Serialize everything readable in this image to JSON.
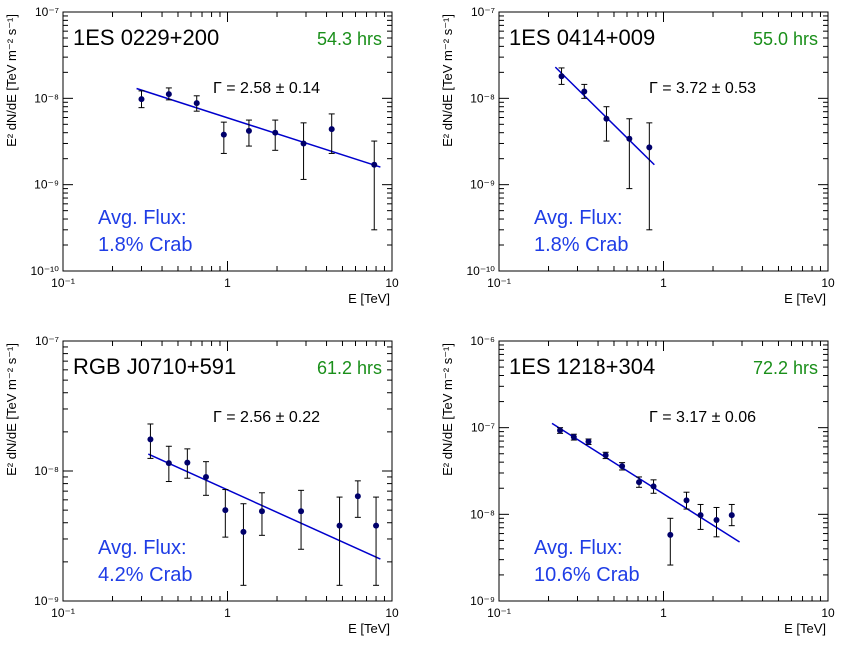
{
  "chart_data": [
    {
      "type": "scatter",
      "title": "1ES 0229+200",
      "exposure": "54.3 hrs",
      "index_label": "Γ = 2.58 ± 0.14",
      "flux_label_1": "Avg. Flux:",
      "flux_label_2": "1.8% Crab",
      "xlabel": "E [TeV]",
      "ylabel": "E² dN/dE [TeV m⁻² s⁻¹]",
      "x_scale": "log",
      "y_scale": "log",
      "xlim": [
        0.1,
        10
      ],
      "ylim": [
        1e-10,
        1e-07
      ],
      "x_ticks": [
        0.1,
        1,
        10
      ],
      "x_tick_labels": [
        "10⁻¹",
        "1",
        "10"
      ],
      "y_ticks": [
        1e-10,
        1e-09,
        1e-08,
        1e-07
      ],
      "y_tick_labels": [
        "10⁻¹⁰",
        "10⁻⁹",
        "10⁻⁸",
        "10⁻⁷"
      ],
      "points": [
        {
          "x": 0.3,
          "y": 9.8e-09,
          "ylo": 7.8e-09,
          "yhi": 1.22e-08
        },
        {
          "x": 0.44,
          "y": 1.12e-08,
          "ylo": 9.6e-09,
          "yhi": 1.32e-08
        },
        {
          "x": 0.65,
          "y": 8.8e-09,
          "ylo": 7.1e-09,
          "yhi": 1.07e-08
        },
        {
          "x": 0.95,
          "y": 3.8e-09,
          "ylo": 2.3e-09,
          "yhi": 5.3e-09
        },
        {
          "x": 1.35,
          "y": 4.2e-09,
          "ylo": 2.8e-09,
          "yhi": 5.6e-09
        },
        {
          "x": 1.95,
          "y": 4e-09,
          "ylo": 2.5e-09,
          "yhi": 5.6e-09
        },
        {
          "x": 2.9,
          "y": 3e-09,
          "ylo": 1.15e-09,
          "yhi": 5.2e-09
        },
        {
          "x": 4.3,
          "y": 4.4e-09,
          "ylo": 2.3e-09,
          "yhi": 6.6e-09
        },
        {
          "x": 7.8,
          "y": 1.7e-09,
          "ylo": 3e-10,
          "yhi": 3.2e-09
        }
      ],
      "fit_line": {
        "x": [
          0.28,
          8.5
        ],
        "y": [
          1.3e-08,
          1.6e-09
        ]
      }
    },
    {
      "type": "scatter",
      "title": "1ES 0414+009",
      "exposure": "55.0 hrs",
      "index_label": "Γ = 3.72 ± 0.53",
      "flux_label_1": "Avg. Flux:",
      "flux_label_2": "1.8% Crab",
      "xlabel": "E [TeV]",
      "ylabel": "E² dN/dE [TeV m⁻² s⁻¹]",
      "x_scale": "log",
      "y_scale": "log",
      "xlim": [
        0.1,
        10
      ],
      "ylim": [
        1e-10,
        1e-07
      ],
      "x_ticks": [
        0.1,
        1,
        10
      ],
      "x_tick_labels": [
        "10⁻¹",
        "1",
        "10"
      ],
      "y_ticks": [
        1e-10,
        1e-09,
        1e-08,
        1e-07
      ],
      "y_tick_labels": [
        "10⁻¹⁰",
        "10⁻⁹",
        "10⁻⁸",
        "10⁻⁷"
      ],
      "points": [
        {
          "x": 0.24,
          "y": 1.8e-08,
          "ylo": 1.45e-08,
          "yhi": 2.25e-08
        },
        {
          "x": 0.33,
          "y": 1.2e-08,
          "ylo": 1e-08,
          "yhi": 1.45e-08
        },
        {
          "x": 0.45,
          "y": 5.8e-09,
          "ylo": 3.2e-09,
          "yhi": 8e-09
        },
        {
          "x": 0.62,
          "y": 3.4e-09,
          "ylo": 9e-10,
          "yhi": 5.8e-09
        },
        {
          "x": 0.82,
          "y": 2.7e-09,
          "ylo": 3e-10,
          "yhi": 5.2e-09
        }
      ],
      "fit_line": {
        "x": [
          0.22,
          0.88
        ],
        "y": [
          2.3e-08,
          1.7e-09
        ]
      }
    },
    {
      "type": "scatter",
      "title": "RGB J0710+591",
      "exposure": "61.2 hrs",
      "index_label": "Γ = 2.56 ± 0.22",
      "flux_label_1": "Avg. Flux:",
      "flux_label_2": "4.2% Crab",
      "xlabel": "E [TeV]",
      "ylabel": "E² dN/dE [TeV m⁻² s⁻¹]",
      "x_scale": "log",
      "y_scale": "log",
      "xlim": [
        0.1,
        10
      ],
      "ylim": [
        1e-09,
        1e-07
      ],
      "x_ticks": [
        0.1,
        1,
        10
      ],
      "x_tick_labels": [
        "10⁻¹",
        "1",
        "10"
      ],
      "y_ticks": [
        1e-09,
        1e-08,
        1e-07
      ],
      "y_tick_labels": [
        "10⁻⁹",
        "10⁻⁸",
        "10⁻⁷"
      ],
      "points": [
        {
          "x": 0.34,
          "y": 1.75e-08,
          "ylo": 1.25e-08,
          "yhi": 2.3e-08
        },
        {
          "x": 0.44,
          "y": 1.15e-08,
          "ylo": 8.3e-09,
          "yhi": 1.55e-08
        },
        {
          "x": 0.57,
          "y": 1.16e-08,
          "ylo": 8.8e-09,
          "yhi": 1.48e-08
        },
        {
          "x": 0.74,
          "y": 9e-09,
          "ylo": 6.5e-09,
          "yhi": 1.18e-08
        },
        {
          "x": 0.97,
          "y": 5e-09,
          "ylo": 3.1e-09,
          "yhi": 7.2e-09
        },
        {
          "x": 1.25,
          "y": 3.4e-09,
          "ylo": 1.32e-09,
          "yhi": 5.6e-09
        },
        {
          "x": 1.62,
          "y": 4.9e-09,
          "ylo": 3.2e-09,
          "yhi": 6.8e-09
        },
        {
          "x": 2.8,
          "y": 4.9e-09,
          "ylo": 2.5e-09,
          "yhi": 7.1e-09
        },
        {
          "x": 4.8,
          "y": 3.8e-09,
          "ylo": 1.32e-09,
          "yhi": 6.3e-09
        },
        {
          "x": 6.2,
          "y": 6.4e-09,
          "ylo": 4.4e-09,
          "yhi": 8.4e-09
        },
        {
          "x": 8.0,
          "y": 3.8e-09,
          "ylo": 1.32e-09,
          "yhi": 6.3e-09
        }
      ],
      "fit_line": {
        "x": [
          0.33,
          8.5
        ],
        "y": [
          1.35e-08,
          2.1e-09
        ]
      }
    },
    {
      "type": "scatter",
      "title": "1ES 1218+304",
      "exposure": "72.2 hrs",
      "index_label": "Γ = 3.17 ± 0.06",
      "flux_label_1": "Avg. Flux:",
      "flux_label_2": "10.6% Crab",
      "xlabel": "E [TeV]",
      "ylabel": "E² dN/dE [TeV m⁻² s⁻¹]",
      "x_scale": "log",
      "y_scale": "log",
      "xlim": [
        0.1,
        10
      ],
      "ylim": [
        1e-09,
        1e-06
      ],
      "x_ticks": [
        0.1,
        1,
        10
      ],
      "x_tick_labels": [
        "10⁻¹",
        "1",
        "10"
      ],
      "y_ticks": [
        1e-09,
        1e-08,
        1e-07,
        1e-06
      ],
      "y_tick_labels": [
        "10⁻⁹",
        "10⁻⁸",
        "10⁻⁷",
        "10⁻⁶"
      ],
      "points": [
        {
          "x": 0.235,
          "y": 9.3e-08,
          "ylo": 8.6e-08,
          "yhi": 1e-07
        },
        {
          "x": 0.285,
          "y": 7.8e-08,
          "ylo": 7.2e-08,
          "yhi": 8.4e-08
        },
        {
          "x": 0.35,
          "y": 6.9e-08,
          "ylo": 6.4e-08,
          "yhi": 7.4e-08
        },
        {
          "x": 0.445,
          "y": 4.8e-08,
          "ylo": 4.4e-08,
          "yhi": 5.2e-08
        },
        {
          "x": 0.56,
          "y": 3.6e-08,
          "ylo": 3.25e-08,
          "yhi": 3.95e-08
        },
        {
          "x": 0.71,
          "y": 2.35e-08,
          "ylo": 2.05e-08,
          "yhi": 2.7e-08
        },
        {
          "x": 0.87,
          "y": 2.1e-08,
          "ylo": 1.75e-08,
          "yhi": 2.5e-08
        },
        {
          "x": 1.1,
          "y": 5.8e-09,
          "ylo": 2.6e-09,
          "yhi": 9e-09
        },
        {
          "x": 1.38,
          "y": 1.45e-08,
          "ylo": 1.15e-08,
          "yhi": 1.8e-08
        },
        {
          "x": 1.68,
          "y": 9.8e-09,
          "ylo": 6.7e-09,
          "yhi": 1.3e-08
        },
        {
          "x": 2.1,
          "y": 8.6e-09,
          "ylo": 5.5e-09,
          "yhi": 1.2e-08
        },
        {
          "x": 2.6,
          "y": 9.8e-09,
          "ylo": 7.4e-09,
          "yhi": 1.3e-08
        }
      ],
      "fit_line": {
        "x": [
          0.21,
          2.9
        ],
        "y": [
          1.12e-07,
          4.8e-09
        ]
      }
    }
  ],
  "colors": {
    "fit": "#0000cc",
    "points": "#00006b",
    "exposure": "#1a8f1a",
    "flux": "#1f3de6",
    "axis": "#000000"
  }
}
